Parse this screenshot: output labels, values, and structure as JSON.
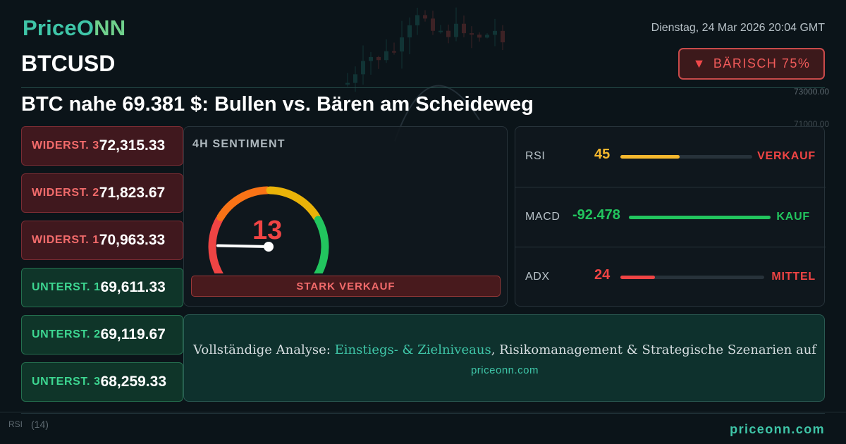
{
  "brand": {
    "logo_text_a": "PriceO",
    "logo_text_b": "NN",
    "footer_url": "priceonn.com"
  },
  "datetime": "Dienstag, 24 Mar 2026 20:04 GMT",
  "symbol": "BTCUSD",
  "bias_badge": {
    "arrow": "▼",
    "label": "BÄRISCH 75%",
    "color": "#f05a5a"
  },
  "headline": "BTC nahe 69.381 $: Bullen vs. Bären am Scheideweg",
  "levels": [
    {
      "label": "WIDERST. 3",
      "value": "72,315.33",
      "kind": "resistance"
    },
    {
      "label": "WIDERST. 2",
      "value": "71,823.67",
      "kind": "resistance"
    },
    {
      "label": "WIDERST. 1",
      "value": "70,963.33",
      "kind": "resistance"
    },
    {
      "label": "UNTERST. 1",
      "value": "69,611.33",
      "kind": "support"
    },
    {
      "label": "UNTERST. 2",
      "value": "69,119.67",
      "kind": "support"
    },
    {
      "label": "UNTERST. 3",
      "value": "68,259.33",
      "kind": "support"
    }
  ],
  "sentiment": {
    "title": "4H SENTIMENT",
    "score": "13",
    "score_value": 13,
    "verdict": "STARK VERKAUF",
    "gauge_colors": [
      "#ef4444",
      "#f97316",
      "#eab308",
      "#22c55e"
    ]
  },
  "indicators": [
    {
      "name": "RSI",
      "value": "45",
      "signal": "VERKAUF",
      "level": 0.45,
      "value_color": "#f5b82e",
      "bar_color": "#f5b82e",
      "signal_color": "#ef4444"
    },
    {
      "name": "MACD",
      "value": "-92.478",
      "signal": "KAUF",
      "level": 1.0,
      "value_color": "#22c55e",
      "bar_color": "#22c55e",
      "signal_color": "#22c55e"
    },
    {
      "name": "ADX",
      "value": "24",
      "signal": "MITTEL",
      "level": 0.24,
      "value_color": "#ef4444",
      "bar_color": "#ef4444",
      "signal_color": "#ef4444"
    }
  ],
  "cta": {
    "text_before": "Vollständige Analyse: ",
    "highlight": "Einstiegs- & Zielniveaus",
    "text_after": ", Risikomanagement & Strategische Szenarien auf",
    "url": "priceonn.com"
  },
  "background_chart": {
    "axis_labels": [
      "73000.00",
      "71000.00"
    ],
    "pane_label": "RSI",
    "pane_period": "(14)"
  }
}
